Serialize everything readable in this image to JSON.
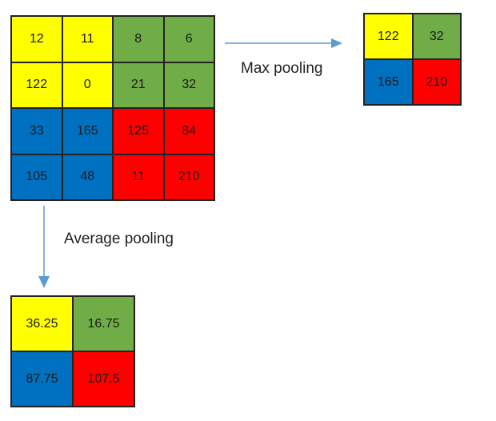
{
  "input_grid": {
    "cells": [
      {
        "value": "12",
        "color": "#ffff00"
      },
      {
        "value": "11",
        "color": "#ffff00"
      },
      {
        "value": "8",
        "color": "#70ad47"
      },
      {
        "value": "6",
        "color": "#70ad47"
      },
      {
        "value": "122",
        "color": "#ffff00"
      },
      {
        "value": "0",
        "color": "#ffff00"
      },
      {
        "value": "21",
        "color": "#70ad47"
      },
      {
        "value": "32",
        "color": "#70ad47"
      },
      {
        "value": "33",
        "color": "#0070c0"
      },
      {
        "value": "165",
        "color": "#0070c0"
      },
      {
        "value": "125",
        "color": "#ff0000"
      },
      {
        "value": "84",
        "color": "#ff0000"
      },
      {
        "value": "105",
        "color": "#0070c0"
      },
      {
        "value": "48",
        "color": "#0070c0"
      },
      {
        "value": "11",
        "color": "#ff0000"
      },
      {
        "value": "210",
        "color": "#ff0000"
      }
    ]
  },
  "max_pooling": {
    "label": "Max pooling",
    "cells": [
      {
        "value": "122",
        "color": "#ffff00"
      },
      {
        "value": "32",
        "color": "#70ad47"
      },
      {
        "value": "165",
        "color": "#0070c0"
      },
      {
        "value": "210",
        "color": "#ff0000"
      }
    ]
  },
  "average_pooling": {
    "label": "Average pooling",
    "cells": [
      {
        "value": "36.25",
        "color": "#ffff00"
      },
      {
        "value": "16.75",
        "color": "#70ad47"
      },
      {
        "value": "87.75",
        "color": "#0070c0"
      },
      {
        "value": "107.5",
        "color": "#ff0000"
      }
    ]
  },
  "arrow_color": "#5b9bd5"
}
